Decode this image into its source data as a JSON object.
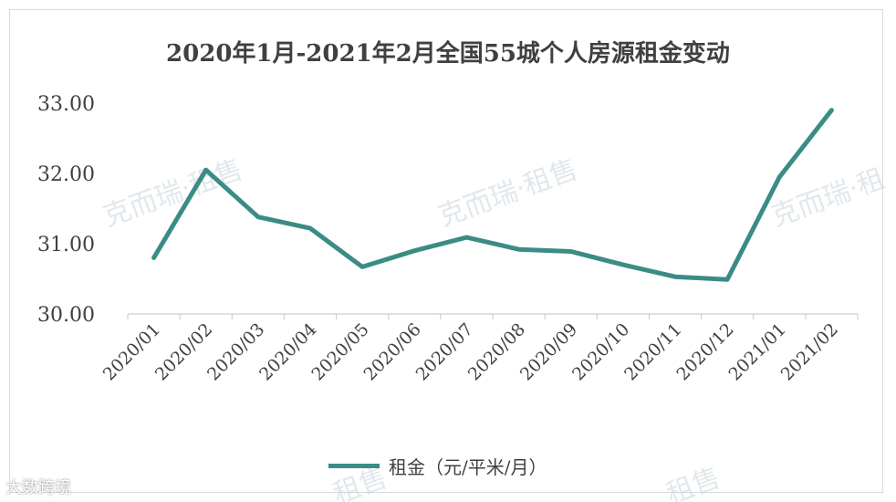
{
  "chart_data": {
    "type": "line",
    "title": "2020年1月-2021年2月全国55城个人房源租金变动",
    "categories": [
      "2020/01",
      "2020/02",
      "2020/03",
      "2020/04",
      "2020/05",
      "2020/06",
      "2020/07",
      "2020/08",
      "2020/09",
      "2020/10",
      "2020/11",
      "2020/12",
      "2021/01",
      "2021/02"
    ],
    "series": [
      {
        "name": "租金（元/平米/月）",
        "values": [
          30.8,
          32.05,
          31.38,
          31.22,
          30.67,
          30.9,
          31.09,
          30.92,
          30.89,
          30.7,
          30.53,
          30.49,
          31.95,
          32.9
        ],
        "color": "#3a8c84"
      }
    ],
    "yticks": [
      "30.00",
      "31.00",
      "32.00",
      "33.00"
    ],
    "ylim": [
      30,
      33
    ],
    "legend_position": "bottom",
    "grid": false
  },
  "watermarks": [
    "克而瑞·租售",
    "克而瑞·租售",
    "克而瑞·租",
    "租售",
    "租售"
  ],
  "corner_logo": "大数跨境"
}
